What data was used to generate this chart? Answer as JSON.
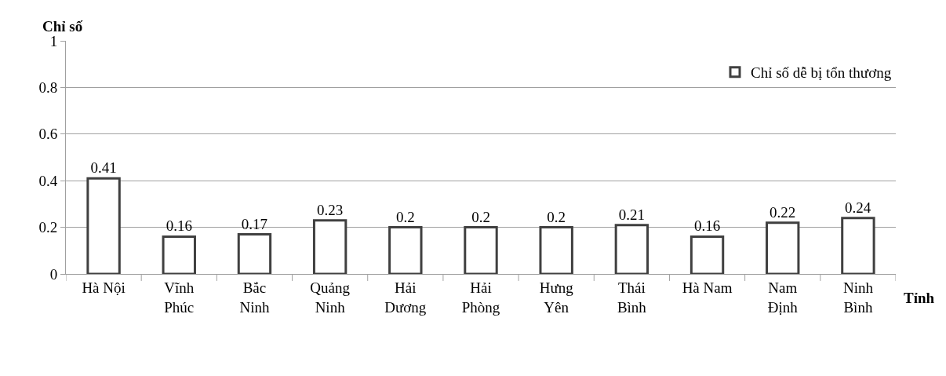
{
  "chart_data": {
    "type": "bar",
    "xlabel": "Tỉnh",
    "ylabel": "Chỉ số",
    "categories": [
      "Hà Nội",
      "Vĩnh\nPhúc",
      "Bắc\nNinh",
      "Quảng\nNinh",
      "Hải\nDương",
      "Hải\nPhòng",
      "Hưng\nYên",
      "Thái\nBình",
      "Hà Nam",
      "Nam\nĐịnh",
      "Ninh\nBình"
    ],
    "series": [
      {
        "name": "Chỉ số dễ bị tổn thương",
        "color": "#404040",
        "values": [
          0.41,
          0.16,
          0.17,
          0.23,
          0.2,
          0.2,
          0.2,
          0.21,
          0.16,
          0.22,
          0.24
        ]
      }
    ],
    "ylim": [
      0,
      1
    ],
    "yticks": [
      0,
      0.2,
      0.4,
      0.6,
      0.8,
      1
    ],
    "grid": "y",
    "legend": "top right",
    "data_labels": true
  }
}
